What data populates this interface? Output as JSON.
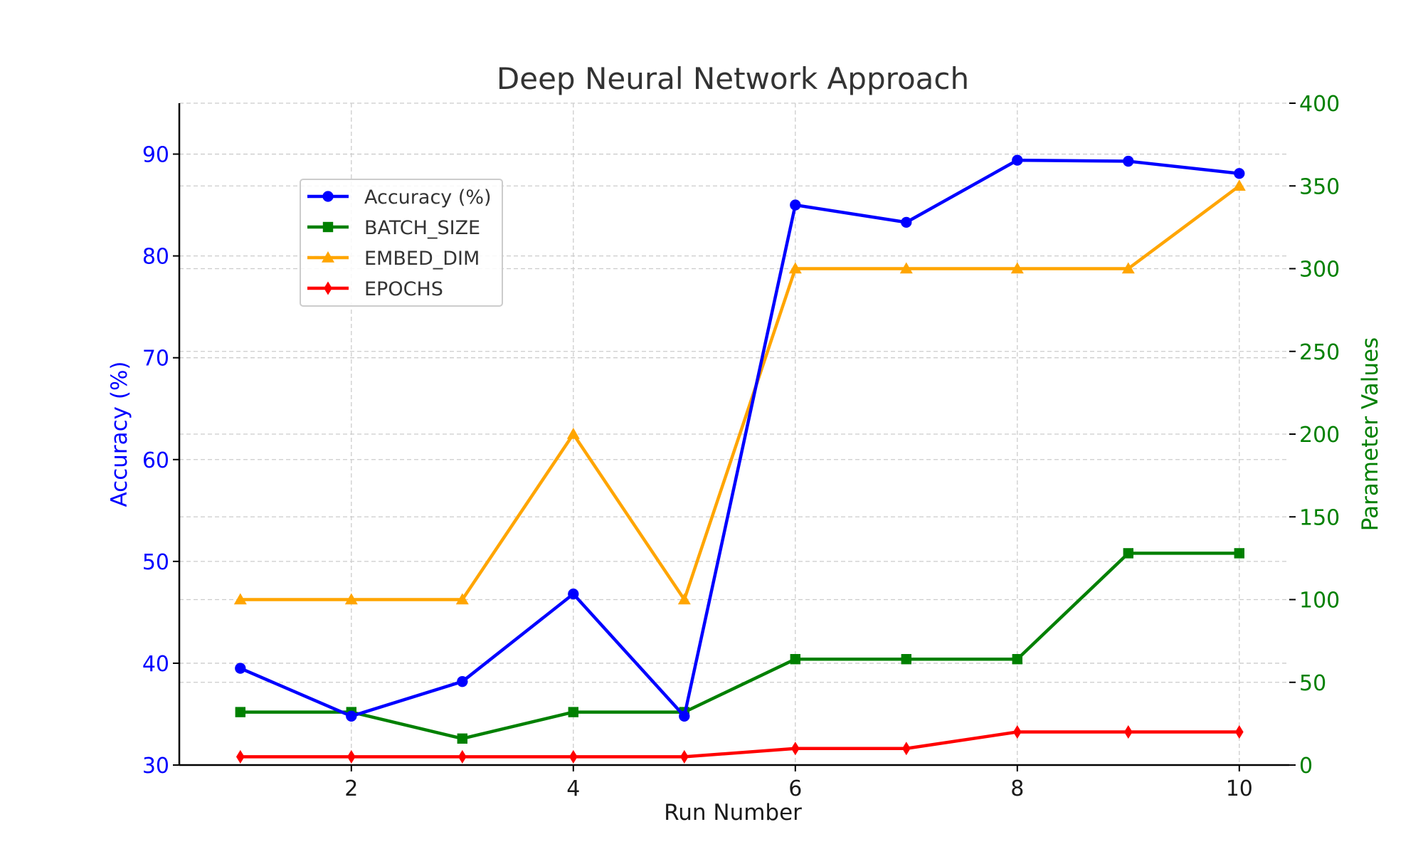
{
  "chart_data": {
    "type": "line",
    "title": "Deep Neural Network Approach",
    "xlabel": "Run Number",
    "ylabel_left": "Accuracy (%)",
    "ylabel_right": "Parameter Values",
    "x": [
      1,
      2,
      3,
      4,
      5,
      6,
      7,
      8,
      9,
      10
    ],
    "x_ticks": [
      2,
      4,
      6,
      8,
      10
    ],
    "xlim": [
      0.45,
      10.45
    ],
    "ylim_left": [
      30,
      95
    ],
    "y_ticks_left": [
      30,
      40,
      50,
      60,
      70,
      80,
      90
    ],
    "ylim_right": [
      0,
      400
    ],
    "y_ticks_right": [
      0,
      50,
      100,
      150,
      200,
      250,
      300,
      350,
      400
    ],
    "grid": true,
    "legend_position": "upper-left",
    "colors": {
      "left_axis": "#0000ff",
      "right_axis": "#008000",
      "title": "#333333"
    },
    "series": [
      {
        "name": "Accuracy (%)",
        "axis": "left",
        "color": "#0000ff",
        "marker": "circle",
        "values": [
          39.5,
          34.8,
          38.2,
          46.8,
          34.8,
          85.0,
          83.3,
          89.4,
          89.3,
          88.1
        ]
      },
      {
        "name": "BATCH_SIZE",
        "axis": "right",
        "color": "#008000",
        "marker": "square",
        "values": [
          32,
          32,
          16,
          32,
          32,
          64,
          64,
          64,
          128,
          128
        ]
      },
      {
        "name": "EMBED_DIM",
        "axis": "right",
        "color": "#ffa500",
        "marker": "triangle",
        "values": [
          100,
          100,
          100,
          200,
          100,
          300,
          300,
          300,
          300,
          350
        ]
      },
      {
        "name": "EPOCHS",
        "axis": "right",
        "color": "#ff0000",
        "marker": "diamond",
        "values": [
          5,
          5,
          5,
          5,
          5,
          10,
          10,
          20,
          20,
          20
        ]
      }
    ]
  }
}
